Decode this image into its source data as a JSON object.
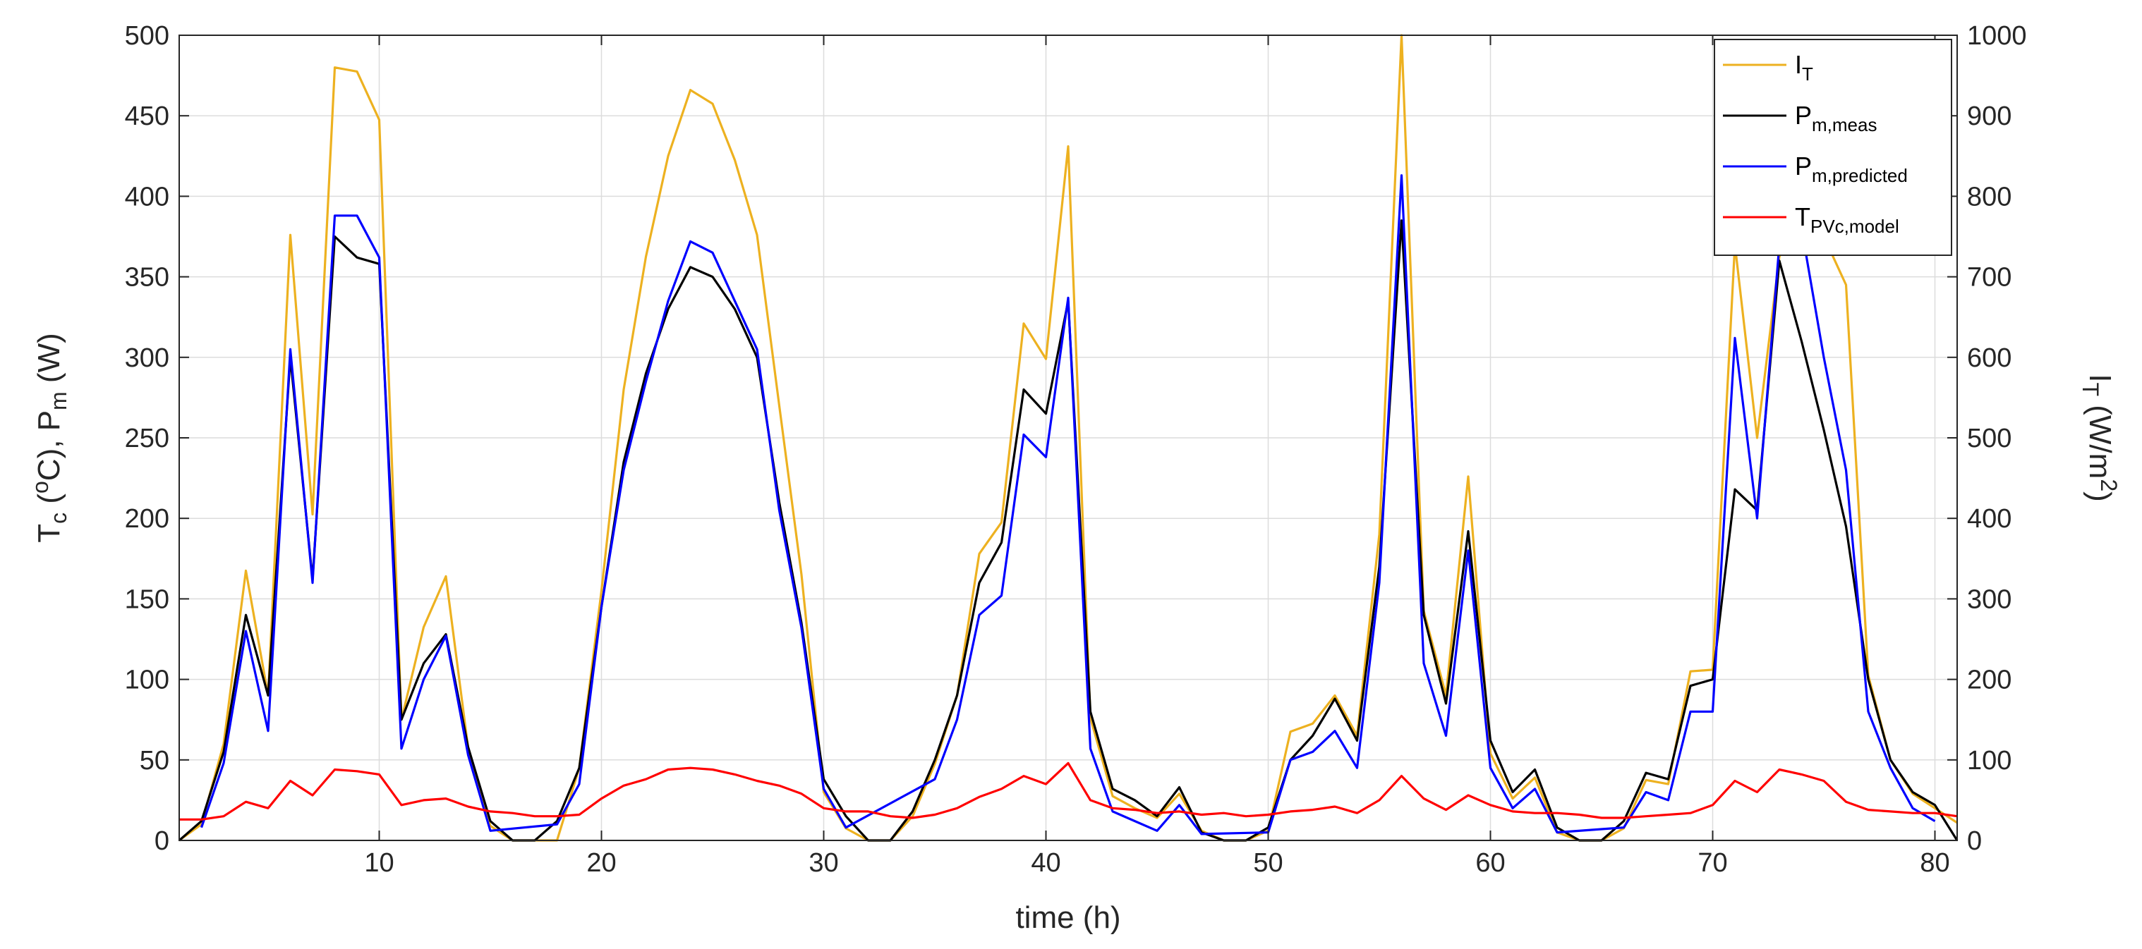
{
  "chart_data": {
    "type": "line",
    "xlabel": "time (h)",
    "ylabel_left": {
      "main": "T",
      "sub1": "c",
      "mid1": " (",
      "sup": "o",
      "mid2": "C),  P",
      "sub2": "m",
      "end": " (W)"
    },
    "ylabel_right": {
      "main": "I",
      "sub": "T",
      "mid": " (W/m",
      "sup": "2",
      "end": ")"
    },
    "xlim": [
      1,
      81
    ],
    "ylim_left": [
      0,
      500
    ],
    "ylim_right": [
      0,
      1000
    ],
    "x_ticks": [
      10,
      20,
      30,
      40,
      50,
      60,
      70,
      80
    ],
    "y_ticks_left": [
      0,
      50,
      100,
      150,
      200,
      250,
      300,
      350,
      400,
      450,
      500
    ],
    "y_ticks_right": [
      0,
      100,
      200,
      300,
      400,
      500,
      600,
      700,
      800,
      900,
      1000
    ],
    "series": [
      {
        "name": "I_T",
        "legend_main": "I",
        "legend_sub": "T",
        "axis": "right",
        "color": "#EDB120",
        "x": [
          1,
          2,
          3,
          4,
          5,
          6,
          7,
          8,
          9,
          10,
          11,
          12,
          13,
          14,
          15,
          16,
          17,
          18,
          19,
          20,
          21,
          22,
          23,
          24,
          25,
          26,
          27,
          28,
          29,
          30,
          31,
          32,
          33,
          34,
          35,
          36,
          37,
          38,
          39,
          40,
          41,
          42,
          43,
          44,
          45,
          46,
          47,
          48,
          49,
          50,
          51,
          52,
          53,
          54,
          55,
          56,
          57,
          58,
          59,
          60,
          61,
          62,
          63,
          64,
          65,
          66,
          67,
          68,
          69,
          70,
          71,
          72,
          73,
          74,
          75,
          76,
          77,
          78,
          79,
          80,
          81
        ],
        "values": [
          0,
          20,
          120,
          335,
          180,
          752,
          405,
          960,
          955,
          895,
          150,
          265,
          328,
          115,
          18,
          0,
          0,
          0,
          90,
          310,
          560,
          725,
          850,
          932,
          915,
          845,
          752,
          540,
          330,
          60,
          15,
          0,
          0,
          30,
          95,
          180,
          356,
          395,
          642,
          598,
          862,
          152,
          55,
          40,
          28,
          58,
          12,
          0,
          0,
          12,
          135,
          145,
          180,
          130,
          380,
          1000,
          285,
          180,
          452,
          108,
          52,
          78,
          10,
          0,
          0,
          15,
          75,
          70,
          210,
          212,
          740,
          500,
          725,
          780,
          750,
          690,
          205,
          100,
          58,
          40,
          22
        ]
      },
      {
        "name": "P_m,meas",
        "legend_main": "P",
        "legend_sub": "m,meas",
        "axis": "left",
        "color": "#000000",
        "x": [
          1,
          2,
          3,
          4,
          5,
          6,
          7,
          8,
          9,
          10,
          11,
          12,
          13,
          14,
          15,
          16,
          17,
          18,
          19,
          20,
          21,
          22,
          23,
          24,
          25,
          26,
          27,
          28,
          29,
          30,
          31,
          32,
          33,
          34,
          35,
          36,
          37,
          38,
          39,
          40,
          41,
          42,
          43,
          44,
          45,
          46,
          47,
          48,
          49,
          50,
          51,
          52,
          53,
          54,
          55,
          56,
          57,
          58,
          59,
          60,
          61,
          62,
          63,
          64,
          65,
          66,
          67,
          68,
          69,
          70,
          71,
          72,
          73,
          74,
          75,
          76,
          77,
          78,
          79,
          80,
          81
        ],
        "values": [
          0,
          12,
          55,
          140,
          90,
          300,
          162,
          375,
          362,
          358,
          75,
          110,
          128,
          58,
          12,
          0,
          0,
          12,
          45,
          145,
          235,
          290,
          330,
          356,
          350,
          330,
          300,
          210,
          135,
          38,
          15,
          0,
          0,
          18,
          50,
          90,
          160,
          185,
          280,
          265,
          335,
          80,
          32,
          25,
          15,
          33,
          5,
          0,
          0,
          8,
          50,
          65,
          88,
          62,
          170,
          385,
          140,
          85,
          192,
          62,
          30,
          44,
          8,
          0,
          0,
          12,
          42,
          38,
          96,
          100,
          218,
          205,
          360,
          310,
          255,
          195,
          100,
          50,
          30,
          22,
          0
        ]
      },
      {
        "name": "P_m,predicted",
        "legend_main": "P",
        "legend_sub": "m,predicted",
        "axis": "left",
        "color": "#0000FF",
        "x": [
          2,
          3,
          4,
          5,
          6,
          7,
          8,
          9,
          10,
          11,
          12,
          13,
          14,
          15,
          18,
          19,
          20,
          21,
          22,
          23,
          24,
          25,
          26,
          27,
          28,
          29,
          30,
          31,
          35,
          36,
          37,
          38,
          39,
          40,
          41,
          42,
          43,
          44,
          45,
          46,
          47,
          50,
          51,
          52,
          53,
          54,
          55,
          56,
          57,
          58,
          59,
          60,
          61,
          62,
          63,
          66,
          67,
          68,
          69,
          70,
          71,
          72,
          73,
          74,
          75,
          76,
          77,
          78,
          79,
          80
        ],
        "values": [
          8,
          48,
          130,
          68,
          305,
          160,
          388,
          388,
          362,
          57,
          100,
          127,
          53,
          6,
          10,
          35,
          145,
          230,
          285,
          335,
          372,
          365,
          335,
          305,
          205,
          132,
          32,
          8,
          38,
          75,
          140,
          152,
          252,
          238,
          337,
          57,
          18,
          12,
          6,
          22,
          4,
          5,
          50,
          55,
          68,
          45,
          160,
          413,
          110,
          65,
          180,
          45,
          20,
          32,
          5,
          8,
          30,
          25,
          80,
          80,
          312,
          200,
          370,
          380,
          300,
          230,
          80,
          45,
          20,
          12
        ]
      },
      {
        "name": "T_PVc,model",
        "legend_main": "T",
        "legend_sub": "PVc,model",
        "axis": "left",
        "color": "#FF0000",
        "x": [
          1,
          2,
          3,
          4,
          5,
          6,
          7,
          8,
          9,
          10,
          11,
          12,
          13,
          14,
          15,
          16,
          17,
          18,
          19,
          20,
          21,
          22,
          23,
          24,
          25,
          26,
          27,
          28,
          29,
          30,
          31,
          32,
          33,
          34,
          35,
          36,
          37,
          38,
          39,
          40,
          41,
          42,
          43,
          44,
          45,
          46,
          47,
          48,
          49,
          50,
          51,
          52,
          53,
          54,
          55,
          56,
          57,
          58,
          59,
          60,
          61,
          62,
          63,
          64,
          65,
          66,
          67,
          68,
          69,
          70,
          71,
          72,
          73,
          74,
          75,
          76,
          77,
          78,
          79,
          80,
          81
        ],
        "values": [
          13,
          13,
          15,
          24,
          20,
          37,
          28,
          44,
          43,
          41,
          22,
          25,
          26,
          21,
          18,
          17,
          15,
          15,
          16,
          26,
          34,
          38,
          44,
          45,
          44,
          41,
          37,
          34,
          29,
          20,
          18,
          18,
          15,
          14,
          16,
          20,
          27,
          32,
          40,
          35,
          48,
          25,
          20,
          19,
          17,
          18,
          16,
          17,
          15,
          16,
          18,
          19,
          21,
          17,
          25,
          40,
          26,
          19,
          28,
          22,
          18,
          17,
          17,
          16,
          14,
          14,
          15,
          16,
          17,
          22,
          37,
          30,
          44,
          41,
          37,
          24,
          19,
          18,
          17,
          17,
          15
        ]
      }
    ],
    "legend": {
      "position": "top-right"
    }
  }
}
